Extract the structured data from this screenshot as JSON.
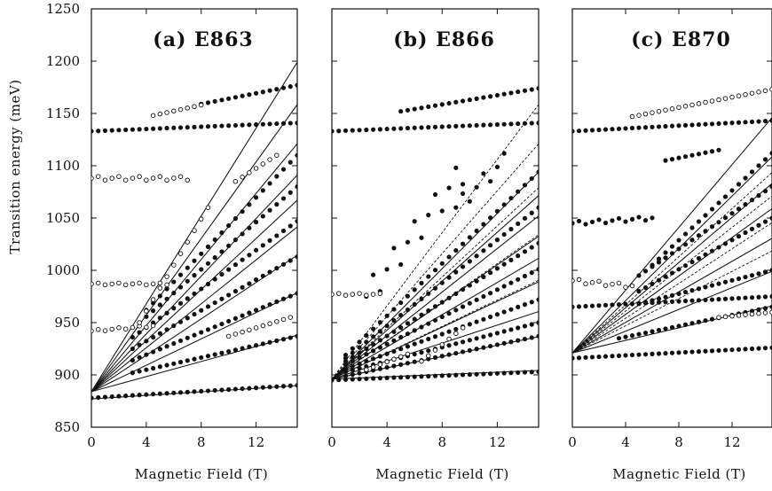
{
  "chart_data": {
    "type": "scatter",
    "y_axis": {
      "label": "Transition energy (meV)",
      "ylim": [
        850,
        1250
      ],
      "ticks": [
        850,
        900,
        950,
        1000,
        1050,
        1100,
        1150,
        1200,
        1250
      ]
    },
    "x_axis_label": "Magnetic Field (T)",
    "xlim": [
      0,
      15
    ],
    "x_ticks": [
      0,
      4,
      8,
      12
    ],
    "panels": [
      {
        "title": "(a) E863",
        "x_axis_label": "Magnetic Field (T)",
        "solid_fans": [
          {
            "start": 884,
            "slopes": [
              21,
              18.3,
              15.8,
              13.8,
              12.2,
              10.5,
              8.7,
              6.3,
              3.6
            ]
          },
          {
            "start": 877,
            "slopes": [
              0.85
            ]
          }
        ],
        "dashed_fans": [],
        "filled_point_series": [
          {
            "x0": 0,
            "x1": 15,
            "step": 0.5,
            "y0": 878,
            "y1": 890
          },
          {
            "x0": 0,
            "x1": 15,
            "step": 0.5,
            "y0": 1133,
            "y1": 1141
          },
          {
            "x0": 3.0,
            "x1": 15,
            "step": 0.5,
            "y0": 902,
            "y1": 937
          },
          {
            "x0": 3.0,
            "x1": 15,
            "step": 0.5,
            "y0": 914,
            "y1": 978
          },
          {
            "x0": 3.0,
            "x1": 15,
            "step": 0.5,
            "y0": 925,
            "y1": 1013
          },
          {
            "x0": 3.0,
            "x1": 15,
            "step": 0.5,
            "y0": 936,
            "y1": 1047
          },
          {
            "x0": 3.5,
            "x1": 15,
            "step": 0.5,
            "y0": 950,
            "y1": 1080
          },
          {
            "x0": 4.0,
            "x1": 15,
            "step": 0.5,
            "y0": 962,
            "y1": 1110
          },
          {
            "x0": 8.0,
            "x1": 15,
            "step": 0.5,
            "y0": 1159,
            "y1": 1177
          }
        ],
        "open_point_series": [
          {
            "x0": 0,
            "x1": 7,
            "step": 0.5,
            "y0": 1088,
            "y1": 1088,
            "wave": 2
          },
          {
            "x0": 0,
            "x1": 5.5,
            "step": 0.5,
            "y0": 987,
            "y1": 987,
            "wave": 1
          },
          {
            "x0": 0,
            "x1": 4.5,
            "step": 0.5,
            "y0": 942,
            "y1": 947,
            "wave": 1
          },
          {
            "x0": 4.5,
            "x1": 8,
            "step": 0.5,
            "y0": 1148,
            "y1": 1158
          },
          {
            "x0": 3.5,
            "x1": 8.5,
            "step": 0.5,
            "y0": 950,
            "y1": 1060
          },
          {
            "x0": 10.5,
            "x1": 13.5,
            "step": 0.5,
            "y0": 1085,
            "y1": 1110
          },
          {
            "x0": 10.0,
            "x1": 14.5,
            "step": 0.5,
            "y0": 937,
            "y1": 955
          }
        ]
      },
      {
        "title": "(b) E866",
        "x_axis_label": "Magnetic Field (T)",
        "solid_fans": [
          {
            "start": 896,
            "slopes": [
              13.2,
              11.7,
              10.4,
              9.1,
              7.7,
              6.2,
              4.3,
              2.7,
              0.55
            ]
          }
        ],
        "dashed_fans": [
          {
            "start": 896,
            "slopes": [
              17.5,
              15.0,
              12.2,
              9.2,
              6.3
            ]
          }
        ],
        "filled_point_series": [
          {
            "x0": 0,
            "x1": 15,
            "step": 0.5,
            "y0": 895,
            "y1": 903
          },
          {
            "x0": 0,
            "x1": 15,
            "step": 0.5,
            "y0": 1133,
            "y1": 1141
          },
          {
            "x0": 5.0,
            "x1": 15,
            "step": 0.5,
            "y0": 1152,
            "y1": 1174
          },
          {
            "x0": 1.0,
            "x1": 15,
            "step": 0.5,
            "y0": 899,
            "y1": 937
          },
          {
            "x0": 1.0,
            "x1": 15,
            "step": 0.5,
            "y0": 903,
            "y1": 950
          },
          {
            "x0": 1.0,
            "x1": 15,
            "step": 0.5,
            "y0": 906,
            "y1": 972
          },
          {
            "x0": 1.0,
            "x1": 15,
            "step": 0.5,
            "y0": 910,
            "y1": 1001
          },
          {
            "x0": 1.0,
            "x1": 15,
            "step": 0.5,
            "y0": 913,
            "y1": 1026
          },
          {
            "x0": 1.0,
            "x1": 15,
            "step": 0.5,
            "y0": 916,
            "y1": 1060
          },
          {
            "x0": 1.0,
            "x1": 15,
            "step": 0.5,
            "y0": 919,
            "y1": 1094
          },
          {
            "x0": 2.5,
            "x1": 9.5,
            "step": 0.5,
            "y0": 975,
            "y1": 1095,
            "wave": 14
          },
          {
            "x0": 9.0,
            "x1": 12.5,
            "step": 0.5,
            "y0": 1060,
            "y1": 1105,
            "wave": 8
          }
        ],
        "open_point_series": [
          {
            "x0": 0,
            "x1": 3.5,
            "step": 0.5,
            "y0": 977,
            "y1": 977,
            "wave": 1
          },
          {
            "x0": 6.5,
            "x1": 9.5,
            "step": 0.5,
            "y0": 913,
            "y1": 945
          },
          {
            "x0": 2.5,
            "x1": 5.5,
            "step": 0.5,
            "y0": 905,
            "y1": 920
          }
        ]
      },
      {
        "title": "(c) E870",
        "x_axis_label": "Magnetic Field (T)",
        "solid_fans": [
          {
            "start": 921,
            "slopes": [
              15.0,
              12.5,
              10.8,
              9.2,
              7.3,
              5.2,
              3.0
            ]
          }
        ],
        "dashed_fans": [
          {
            "start": 921,
            "slopes": [
              11.5,
              10.0,
              8.3,
              6.5
            ]
          }
        ],
        "filled_point_series": [
          {
            "x0": 0,
            "x1": 15,
            "step": 0.5,
            "y0": 916,
            "y1": 926
          },
          {
            "x0": 0,
            "x1": 15,
            "step": 0.5,
            "y0": 965,
            "y1": 975
          },
          {
            "x0": 0,
            "x1": 15,
            "step": 0.5,
            "y0": 1133,
            "y1": 1143
          },
          {
            "x0": 0,
            "x1": 6,
            "step": 0.5,
            "y0": 1045,
            "y1": 1050,
            "wave": 2
          },
          {
            "x0": 3.5,
            "x1": 15,
            "step": 0.5,
            "y0": 935,
            "y1": 965
          },
          {
            "x0": 5.0,
            "x1": 15,
            "step": 0.5,
            "y0": 968,
            "y1": 1000
          },
          {
            "x0": 5.0,
            "x1": 15,
            "step": 0.5,
            "y0": 980,
            "y1": 1050
          },
          {
            "x0": 5.0,
            "x1": 15,
            "step": 0.5,
            "y0": 995,
            "y1": 1080
          },
          {
            "x0": 6.0,
            "x1": 15,
            "step": 0.5,
            "y0": 1005,
            "y1": 1112
          },
          {
            "x0": 7.0,
            "x1": 11.0,
            "step": 0.5,
            "y0": 1105,
            "y1": 1115
          }
        ],
        "open_point_series": [
          {
            "x0": 0,
            "x1": 4.5,
            "step": 0.5,
            "y0": 990,
            "y1": 985,
            "wave": 2
          },
          {
            "x0": 4.5,
            "x1": 15,
            "step": 0.5,
            "y0": 1147,
            "y1": 1173
          },
          {
            "x0": 11.0,
            "x1": 15,
            "step": 0.5,
            "y0": 955,
            "y1": 960
          }
        ]
      }
    ]
  }
}
